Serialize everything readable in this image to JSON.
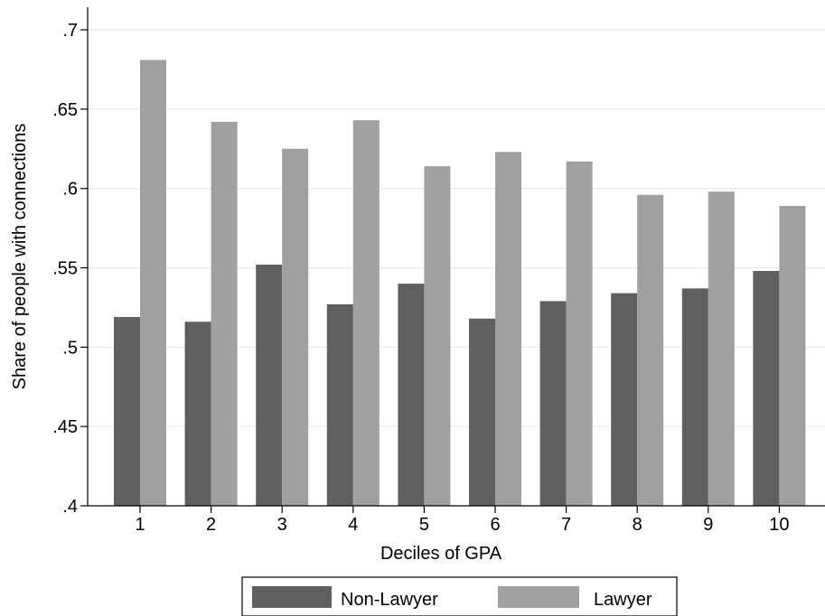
{
  "chart_data": {
    "type": "bar",
    "title": "",
    "xlabel": "Deciles of GPA",
    "ylabel": "Share of people with connections",
    "categories": [
      "1",
      "2",
      "3",
      "4",
      "5",
      "6",
      "7",
      "8",
      "9",
      "10"
    ],
    "series": [
      {
        "name": "Non-Lawyer",
        "color": "#5f5f5f",
        "values": [
          0.519,
          0.516,
          0.552,
          0.527,
          0.54,
          0.518,
          0.529,
          0.534,
          0.537,
          0.548
        ]
      },
      {
        "name": "Lawyer",
        "color": "#a0a0a0",
        "values": [
          0.681,
          0.642,
          0.625,
          0.643,
          0.614,
          0.623,
          0.617,
          0.596,
          0.598,
          0.589
        ]
      }
    ],
    "ylim": [
      0.4,
      0.7
    ],
    "yticks": [
      0.4,
      0.45,
      0.5,
      0.55,
      0.6,
      0.65,
      0.7
    ],
    "ytick_labels": [
      ".4",
      ".45",
      ".5",
      ".55",
      ".6",
      ".65",
      ".7"
    ],
    "grid": true,
    "gridline_color": "#e8e8e8",
    "legend_position": "bottom"
  }
}
